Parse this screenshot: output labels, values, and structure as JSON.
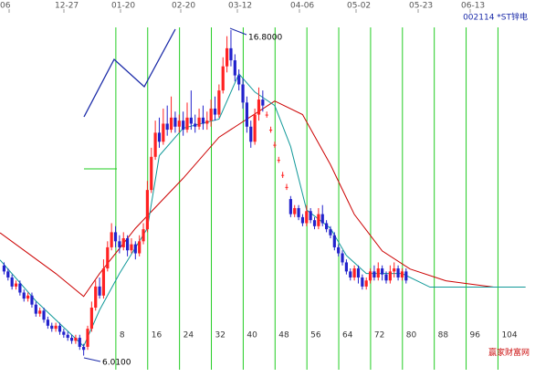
{
  "chart_data": {
    "type": "candlestick",
    "title": "002114 *ST锌电",
    "watermark": "赢家财富网",
    "annotations": [
      {
        "text": "16.8000"
      },
      {
        "text": "6.0100"
      }
    ],
    "top_labels": [
      "06",
      "12-27",
      "01-20",
      "02-20",
      "03-12",
      "04-06",
      "05-02",
      "05-23",
      "06-13"
    ],
    "xlim": [
      -22,
      110
    ],
    "ylim": [
      5.3,
      17.8
    ],
    "xticks": [
      8,
      16,
      24,
      32,
      40,
      48,
      56,
      64,
      72,
      80,
      88,
      96,
      104
    ],
    "up_color": "#ff2222",
    "down_color": "#2222cc",
    "x": [
      -21,
      -20,
      -19,
      -18,
      -17,
      -16,
      -15,
      -14,
      -13,
      -12,
      -11,
      -10,
      -9,
      -8,
      -7,
      -6,
      -5,
      -4,
      -3,
      -2,
      -1,
      0,
      1,
      2,
      3,
      4,
      5,
      6,
      7,
      8,
      9,
      10,
      11,
      12,
      13,
      14,
      15,
      16,
      17,
      18,
      19,
      20,
      21,
      22,
      23,
      24,
      25,
      26,
      27,
      28,
      29,
      30,
      31,
      32,
      33,
      34,
      35,
      36,
      37,
      38,
      39,
      40,
      41,
      42,
      43,
      44,
      45,
      46,
      47,
      48,
      49,
      50,
      51,
      52,
      53,
      54,
      55,
      56,
      57,
      58,
      59,
      60,
      61,
      62,
      63,
      64,
      65,
      66,
      67,
      68,
      69,
      70,
      71,
      72,
      73,
      74,
      75,
      76,
      77,
      78,
      79,
      80
    ],
    "values": [
      [
        9.0,
        8.8,
        9.1,
        8.7
      ],
      [
        8.8,
        8.6,
        8.9,
        8.5
      ],
      [
        8.6,
        8.3,
        8.7,
        8.2
      ],
      [
        8.3,
        8.4,
        8.5,
        8.2
      ],
      [
        8.4,
        8.1,
        8.5,
        8.0
      ],
      [
        8.1,
        7.9,
        8.2,
        7.8
      ],
      [
        7.9,
        8.0,
        8.1,
        7.8
      ],
      [
        8.0,
        7.7,
        8.1,
        7.6
      ],
      [
        7.7,
        7.4,
        7.8,
        7.3
      ],
      [
        7.4,
        7.5,
        7.6,
        7.3
      ],
      [
        7.5,
        7.2,
        7.6,
        7.1
      ],
      [
        7.2,
        7.0,
        7.3,
        6.9
      ],
      [
        7.0,
        6.9,
        7.1,
        6.8
      ],
      [
        6.9,
        7.0,
        7.1,
        6.8
      ],
      [
        7.0,
        6.8,
        7.1,
        6.7
      ],
      [
        6.8,
        6.7,
        6.9,
        6.6
      ],
      [
        6.7,
        6.6,
        6.8,
        6.5
      ],
      [
        6.6,
        6.5,
        6.7,
        6.4
      ],
      [
        6.5,
        6.6,
        6.7,
        6.4
      ],
      [
        6.6,
        6.3,
        6.7,
        6.2
      ],
      [
        6.3,
        6.2,
        6.4,
        6.01
      ],
      [
        6.3,
        6.9,
        7.0,
        6.2
      ],
      [
        6.9,
        7.6,
        7.8,
        6.8
      ],
      [
        7.6,
        8.3,
        8.5,
        7.5
      ],
      [
        8.3,
        8.0,
        8.6,
        7.9
      ],
      [
        8.0,
        8.9,
        9.2,
        7.9
      ],
      [
        8.9,
        9.6,
        9.8,
        8.8
      ],
      [
        9.6,
        10.1,
        10.4,
        9.5
      ],
      [
        10.1,
        9.8,
        10.3,
        9.6
      ],
      [
        9.8,
        9.6,
        10.0,
        9.4
      ],
      [
        9.6,
        9.9,
        10.1,
        9.5
      ],
      [
        9.9,
        9.5,
        10.0,
        9.3
      ],
      [
        9.5,
        9.7,
        9.9,
        9.4
      ],
      [
        9.7,
        9.4,
        9.8,
        9.2
      ],
      [
        9.4,
        9.8,
        10.0,
        9.3
      ],
      [
        9.8,
        10.2,
        10.4,
        9.7
      ],
      [
        10.2,
        11.5,
        11.8,
        10.1
      ],
      [
        11.5,
        12.6,
        12.9,
        11.4
      ],
      [
        12.6,
        13.4,
        13.8,
        12.5
      ],
      [
        13.4,
        13.1,
        13.9,
        12.9
      ],
      [
        13.1,
        13.7,
        14.2,
        13.0
      ],
      [
        13.7,
        13.5,
        14.3,
        13.3
      ],
      [
        13.5,
        13.9,
        14.6,
        13.4
      ],
      [
        13.9,
        13.6,
        14.1,
        13.4
      ],
      [
        13.6,
        13.8,
        14.0,
        13.4
      ],
      [
        13.8,
        13.5,
        14.1,
        13.3
      ],
      [
        13.5,
        13.9,
        14.4,
        13.4
      ],
      [
        13.9,
        13.7,
        14.8,
        13.5
      ],
      [
        13.7,
        13.6,
        14.0,
        13.4
      ],
      [
        13.6,
        13.9,
        14.2,
        13.5
      ],
      [
        13.9,
        13.7,
        14.3,
        13.5
      ],
      [
        13.7,
        13.8,
        14.1,
        13.5
      ],
      [
        13.8,
        14.2,
        14.5,
        13.6
      ],
      [
        14.2,
        14.0,
        14.6,
        13.8
      ],
      [
        14.0,
        14.8,
        15.0,
        13.9
      ],
      [
        14.8,
        15.6,
        15.9,
        14.7
      ],
      [
        15.6,
        16.2,
        16.6,
        15.4
      ],
      [
        16.2,
        15.8,
        16.8,
        15.6
      ],
      [
        15.8,
        15.3,
        16.0,
        15.1
      ],
      [
        15.3,
        15.0,
        15.5,
        14.8
      ],
      [
        15.0,
        14.4,
        15.2,
        14.2
      ],
      [
        14.4,
        13.6,
        14.6,
        13.4
      ],
      [
        13.6,
        13.1,
        13.8,
        12.9
      ],
      [
        13.1,
        14.0,
        14.2,
        13.0
      ],
      [
        14.0,
        14.5,
        14.9,
        13.8
      ],
      [
        14.5,
        14.3,
        14.8,
        14.1
      ],
      [
        14.0,
        14.0,
        14.1,
        13.9
      ],
      [
        13.5,
        13.5,
        13.6,
        13.4
      ],
      [
        13.0,
        13.0,
        13.1,
        12.9
      ],
      [
        12.5,
        12.5,
        12.6,
        12.4
      ],
      [
        12.0,
        12.0,
        12.1,
        11.9
      ],
      [
        11.6,
        11.6,
        11.7,
        11.5
      ],
      [
        11.2,
        10.7,
        11.3,
        10.6
      ],
      [
        10.7,
        10.9,
        11.0,
        10.6
      ],
      [
        10.9,
        10.6,
        11.0,
        10.5
      ],
      [
        10.6,
        10.4,
        10.7,
        10.3
      ],
      [
        10.4,
        10.8,
        11.0,
        10.3
      ],
      [
        10.8,
        10.5,
        10.9,
        10.4
      ],
      [
        10.5,
        10.3,
        10.6,
        10.2
      ],
      [
        10.3,
        10.7,
        10.9,
        10.2
      ],
      [
        10.7,
        10.4,
        11.0,
        10.3
      ],
      [
        10.4,
        10.2,
        10.5,
        10.1
      ],
      [
        10.2,
        10.0,
        10.3,
        9.9
      ],
      [
        10.0,
        9.6,
        10.1,
        9.5
      ],
      [
        9.6,
        9.4,
        9.7,
        9.3
      ],
      [
        9.4,
        9.1,
        9.5,
        9.0
      ],
      [
        9.1,
        8.8,
        9.2,
        8.7
      ],
      [
        8.8,
        8.6,
        8.9,
        8.5
      ],
      [
        8.6,
        8.9,
        9.0,
        8.5
      ],
      [
        8.9,
        8.6,
        9.0,
        8.4
      ],
      [
        8.6,
        8.3,
        8.7,
        8.2
      ],
      [
        8.3,
        8.5,
        8.6,
        8.2
      ],
      [
        8.5,
        8.8,
        8.9,
        8.4
      ],
      [
        8.8,
        8.6,
        9.0,
        8.5
      ],
      [
        8.6,
        8.9,
        9.1,
        8.5
      ],
      [
        8.9,
        8.7,
        9.0,
        8.5
      ],
      [
        8.7,
        8.5,
        8.8,
        8.4
      ],
      [
        8.5,
        8.8,
        9.0,
        8.4
      ],
      [
        8.8,
        8.9,
        9.1,
        8.6
      ],
      [
        8.9,
        8.6,
        9.0,
        8.5
      ],
      [
        8.6,
        8.8,
        8.9,
        8.5
      ],
      [
        8.8,
        8.5,
        8.9,
        8.4
      ]
    ],
    "ma_lines": [
      {
        "color": "#cc0000",
        "x": [
          -22,
          -8,
          -1,
          3,
          12,
          24,
          33,
          40,
          47,
          54,
          61,
          67,
          74,
          81,
          90,
          102,
          110
        ],
        "values": [
          10.08,
          8.73,
          7.97,
          8.73,
          10.23,
          11.89,
          13.25,
          13.85,
          14.45,
          14.0,
          12.34,
          10.69,
          9.48,
          8.88,
          8.49,
          8.28,
          8.28
        ]
      },
      {
        "color": "#119999",
        "x": [
          -22,
          -13,
          -1,
          3,
          8,
          15,
          18,
          24,
          33,
          38,
          42,
          47,
          51,
          55,
          61,
          65,
          70,
          79,
          86,
          110
        ],
        "values": [
          9.18,
          7.82,
          6.32,
          7.52,
          8.73,
          10.23,
          12.64,
          13.55,
          13.85,
          15.35,
          14.75,
          14.3,
          12.94,
          10.84,
          10.23,
          9.33,
          8.73,
          8.73,
          8.28,
          8.28
        ]
      }
    ]
  }
}
